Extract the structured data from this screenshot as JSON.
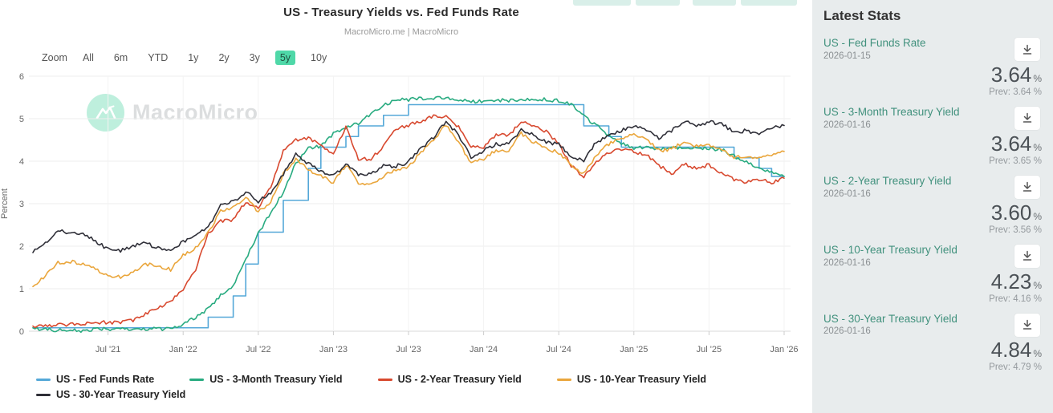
{
  "header": {
    "subtitle": "MacroMicro.me | MacroMicro"
  },
  "toolbar": {
    "zoom_label": "Zoom",
    "ranges": [
      "All",
      "6m",
      "YTD",
      "1y",
      "2y",
      "3y",
      "5y",
      "10y"
    ],
    "selected": "5y"
  },
  "watermark": {
    "text": "MacroMicro",
    "icon": "mountain-logo",
    "circle_color": "#7de0bc"
  },
  "sidebar": {
    "title": "Latest Stats",
    "download_icon": "download-icon",
    "stats": [
      {
        "name": "US - Fed Funds Rate",
        "date": "2026-01-15",
        "value": "3.64",
        "unit": "%",
        "prev": "Prev: 3.64 %"
      },
      {
        "name": "US - 3-Month Treasury Yield",
        "date": "2026-01-16",
        "value": "3.64",
        "unit": "%",
        "prev": "Prev: 3.65 %"
      },
      {
        "name": "US - 2-Year Treasury Yield",
        "date": "2026-01-16",
        "value": "3.60",
        "unit": "%",
        "prev": "Prev: 3.56 %"
      },
      {
        "name": "US - 10-Year Treasury Yield",
        "date": "2026-01-16",
        "value": "4.23",
        "unit": "%",
        "prev": "Prev: 4.16 %"
      },
      {
        "name": "US - 30-Year Treasury Yield",
        "date": "2026-01-16",
        "value": "4.84",
        "unit": "%",
        "prev": "Prev: 4.79 %"
      }
    ]
  },
  "chart_data": {
    "type": "line",
    "title": "US - Treasury Yields vs. Fed Funds Rate",
    "subtitle": "MacroMicro.me | MacroMicro",
    "ylabel": "Percent",
    "ylim": [
      0,
      6
    ],
    "yticks": [
      0,
      1,
      2,
      3,
      4,
      5,
      6
    ],
    "grid": true,
    "legend_position": "bottom",
    "x_start": "2021-01",
    "x_end": "2026-01",
    "x_monthly_points": 61,
    "x_ticks": [
      {
        "label": "Jul '21",
        "month": 6
      },
      {
        "label": "Jan '22",
        "month": 12
      },
      {
        "label": "Jul '22",
        "month": 18
      },
      {
        "label": "Jan '23",
        "month": 24
      },
      {
        "label": "Jul '23",
        "month": 30
      },
      {
        "label": "Jan '24",
        "month": 36
      },
      {
        "label": "Jul '24",
        "month": 42
      },
      {
        "label": "Jan '25",
        "month": 48
      },
      {
        "label": "Jul '25",
        "month": 54
      },
      {
        "label": "Jan '26",
        "month": 60
      }
    ],
    "series": [
      {
        "name": "US - Fed Funds Rate",
        "color": "#55a8d8",
        "step": true,
        "values": [
          0.08,
          0.08,
          0.08,
          0.08,
          0.08,
          0.08,
          0.08,
          0.08,
          0.08,
          0.08,
          0.08,
          0.08,
          0.08,
          0.08,
          0.33,
          0.33,
          0.83,
          1.58,
          2.33,
          2.33,
          3.08,
          3.08,
          3.83,
          4.33,
          4.33,
          4.58,
          4.83,
          4.83,
          5.08,
          5.08,
          5.33,
          5.33,
          5.33,
          5.33,
          5.33,
          5.33,
          5.33,
          5.33,
          5.33,
          5.33,
          5.33,
          5.33,
          5.33,
          5.33,
          4.83,
          4.83,
          4.58,
          4.33,
          4.33,
          4.33,
          4.33,
          4.33,
          4.33,
          4.33,
          4.33,
          4.33,
          4.08,
          4.08,
          3.83,
          3.64,
          3.64
        ]
      },
      {
        "name": "US - 3-Month Treasury Yield",
        "color": "#28ab80",
        "step": false,
        "values": [
          0.08,
          0.04,
          0.03,
          0.02,
          0.01,
          0.04,
          0.05,
          0.05,
          0.04,
          0.05,
          0.05,
          0.06,
          0.15,
          0.33,
          0.52,
          0.85,
          1.05,
          1.7,
          2.3,
          2.8,
          3.25,
          3.95,
          4.3,
          4.35,
          4.65,
          4.8,
          4.9,
          5.1,
          5.3,
          5.45,
          5.45,
          5.48,
          5.48,
          5.5,
          5.45,
          5.4,
          5.42,
          5.44,
          5.43,
          5.45,
          5.46,
          5.45,
          5.42,
          5.35,
          5.05,
          4.85,
          4.6,
          4.42,
          4.3,
          4.32,
          4.3,
          4.31,
          4.34,
          4.32,
          4.3,
          4.27,
          4.12,
          3.98,
          3.85,
          3.72,
          3.64
        ]
      },
      {
        "name": "US - 2-Year Treasury Yield",
        "color": "#d8492f",
        "step": false,
        "values": [
          0.12,
          0.12,
          0.15,
          0.16,
          0.15,
          0.22,
          0.2,
          0.21,
          0.25,
          0.42,
          0.55,
          0.7,
          1.0,
          1.45,
          2.3,
          2.6,
          2.62,
          3.05,
          2.9,
          3.4,
          4.25,
          4.5,
          4.55,
          4.35,
          4.2,
          4.8,
          4.05,
          4.05,
          4.35,
          4.75,
          4.85,
          4.95,
          5.07,
          5.05,
          4.8,
          4.35,
          4.32,
          4.62,
          4.6,
          4.95,
          4.85,
          4.7,
          4.4,
          3.9,
          3.62,
          4.0,
          4.2,
          4.28,
          4.22,
          4.15,
          3.9,
          3.7,
          3.95,
          3.82,
          3.92,
          3.7,
          3.58,
          3.5,
          3.58,
          3.5,
          3.6
        ]
      },
      {
        "name": "US - 10-Year Treasury Yield",
        "color": "#eaa63c",
        "step": false,
        "values": [
          1.05,
          1.3,
          1.62,
          1.63,
          1.6,
          1.48,
          1.28,
          1.28,
          1.4,
          1.58,
          1.55,
          1.45,
          1.8,
          1.95,
          2.32,
          2.85,
          2.9,
          3.15,
          2.8,
          3.05,
          3.7,
          4.05,
          3.8,
          3.65,
          3.5,
          3.92,
          3.5,
          3.45,
          3.65,
          3.8,
          3.88,
          4.2,
          4.5,
          4.85,
          4.45,
          3.95,
          4.05,
          4.25,
          4.25,
          4.65,
          4.45,
          4.3,
          4.2,
          3.9,
          3.7,
          4.15,
          4.4,
          4.52,
          4.62,
          4.5,
          4.25,
          4.28,
          4.45,
          4.35,
          4.4,
          4.25,
          4.1,
          4.12,
          4.08,
          4.15,
          4.23
        ]
      },
      {
        "name": "US - 30-Year Treasury Yield",
        "color": "#2f2f38",
        "step": false,
        "values": [
          1.85,
          2.08,
          2.38,
          2.3,
          2.32,
          2.12,
          1.92,
          1.9,
          2.0,
          2.08,
          1.95,
          1.9,
          2.1,
          2.25,
          2.45,
          2.95,
          3.05,
          3.28,
          3.05,
          3.25,
          3.7,
          4.15,
          3.95,
          3.75,
          3.65,
          3.92,
          3.7,
          3.7,
          3.9,
          3.88,
          3.98,
          4.3,
          4.55,
          4.95,
          4.6,
          4.1,
          4.25,
          4.4,
          4.4,
          4.75,
          4.62,
          4.45,
          4.4,
          4.12,
          4.02,
          4.45,
          4.58,
          4.72,
          4.82,
          4.72,
          4.55,
          4.72,
          4.95,
          4.85,
          4.92,
          4.88,
          4.68,
          4.72,
          4.62,
          4.8,
          4.84
        ]
      }
    ]
  }
}
